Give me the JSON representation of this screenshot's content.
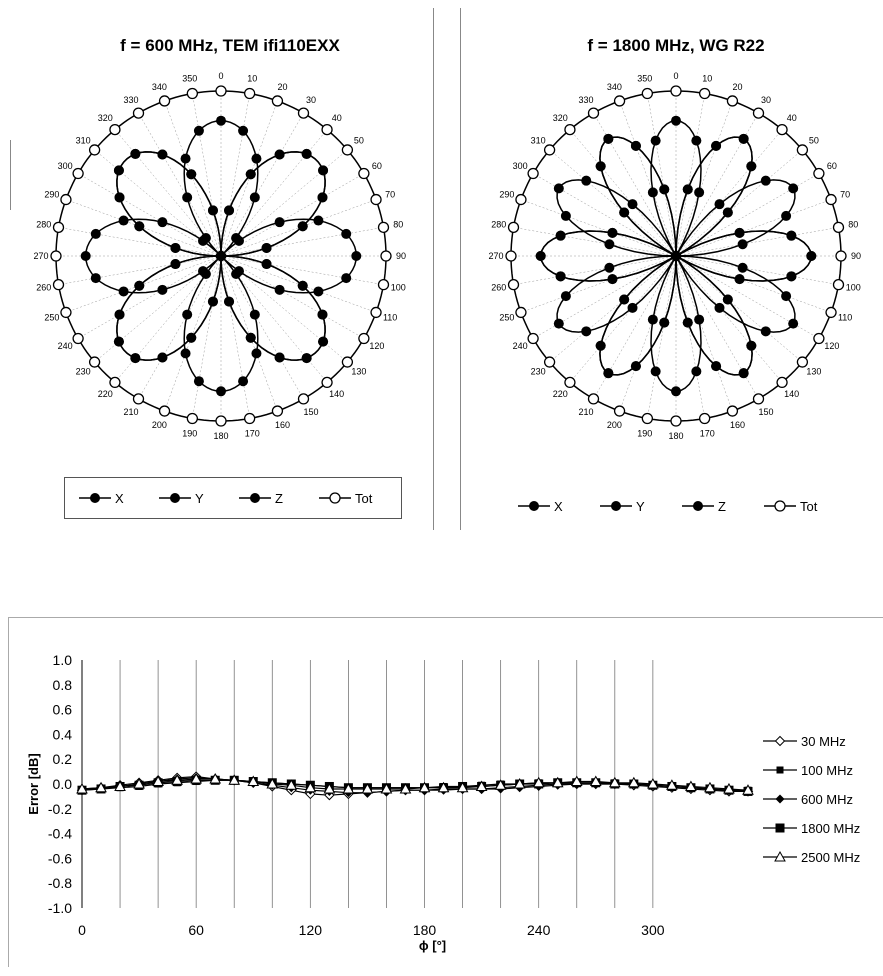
{
  "chart_data": [
    {
      "type": "polar",
      "title": "f = 600 MHz, TEM  ifi110EXX",
      "angle_labels": [
        "0",
        "10",
        "20",
        "30",
        "40",
        "50",
        "60",
        "70",
        "80",
        "90",
        "100",
        "110",
        "120",
        "130",
        "140",
        "150",
        "160",
        "170",
        "180",
        "190",
        "200",
        "210",
        "220",
        "230",
        "240",
        "250",
        "260",
        "270",
        "280",
        "290",
        "300",
        "310",
        "320",
        "330",
        "340",
        "350"
      ],
      "series": [
        {
          "name": "X",
          "marker": "filled-circle",
          "pattern": "|cos(2θ)| petals",
          "petals": 4,
          "orientation_deg": 45
        },
        {
          "name": "Y",
          "marker": "filled-circle",
          "pattern": "|sin(2θ)| petals",
          "petals": 4,
          "orientation_deg": 0
        },
        {
          "name": "Z",
          "marker": "filled-circle",
          "pattern": "|cos(2θ)| petals",
          "petals": 4,
          "orientation_deg": 45
        },
        {
          "name": "Tot",
          "marker": "open-circle",
          "pattern": "constant circle",
          "relative_radius": 1.0
        }
      ],
      "legend": [
        "X",
        "Y",
        "Z",
        "Tot"
      ],
      "legend_position": "bottom"
    },
    {
      "type": "polar",
      "title": "f = 1800 MHz, WG R22",
      "angle_labels": [
        "0",
        "10",
        "20",
        "30",
        "40",
        "50",
        "60",
        "70",
        "80",
        "90",
        "100",
        "110",
        "120",
        "130",
        "140",
        "150",
        "160",
        "170",
        "180",
        "190",
        "200",
        "210",
        "220",
        "230",
        "240",
        "250",
        "260",
        "270",
        "280",
        "290",
        "300",
        "310",
        "320",
        "330",
        "340",
        "350"
      ],
      "series": [
        {
          "name": "X",
          "marker": "filled-circle",
          "pattern": "|cos(3θ)| petals",
          "petals": 6,
          "orientation_deg": 30
        },
        {
          "name": "Y",
          "marker": "filled-circle",
          "pattern": "|sin(3θ)| petals",
          "petals": 6,
          "orientation_deg": 0
        },
        {
          "name": "Z",
          "marker": "filled-circle",
          "pattern": "|cos(3θ)| petals",
          "petals": 6,
          "orientation_deg": 30
        },
        {
          "name": "Tot",
          "marker": "open-circle",
          "pattern": "constant circle",
          "relative_radius": 1.0
        }
      ],
      "legend": [
        "X",
        "Y",
        "Z",
        "Tot"
      ],
      "legend_position": "bottom"
    },
    {
      "type": "line",
      "title": "",
      "xlabel": "ϕ [°]",
      "ylabel": "Error [dB]",
      "xlim": [
        0,
        350
      ],
      "ylim": [
        -1.0,
        1.0
      ],
      "xticks": [
        "0",
        "60",
        "120",
        "180",
        "240",
        "300"
      ],
      "yticks": [
        "1.0",
        "0.8",
        "0.6",
        "0.4",
        "0.2",
        "0.0",
        "-0.2",
        "-0.4",
        "-0.6",
        "-0.8",
        "-1.0"
      ],
      "grid": "vertical every 20°",
      "legend_position": "right",
      "x": [
        0,
        10,
        20,
        30,
        40,
        50,
        60,
        70,
        80,
        90,
        100,
        110,
        120,
        130,
        140,
        150,
        160,
        170,
        180,
        190,
        200,
        210,
        220,
        230,
        240,
        250,
        260,
        270,
        280,
        290,
        300,
        310,
        320,
        330,
        340,
        350
      ],
      "series": [
        {
          "name": "30 MHz",
          "marker": "open-diamond",
          "values": [
            -0.05,
            -0.03,
            -0.01,
            0.01,
            0.03,
            0.05,
            0.06,
            0.04,
            0.03,
            0.01,
            -0.02,
            -0.05,
            -0.08,
            -0.09,
            -0.08,
            -0.07,
            -0.06,
            -0.05,
            -0.05,
            -0.04,
            -0.04,
            -0.04,
            -0.03,
            -0.02,
            -0.01,
            0.0,
            0.0,
            0.0,
            0.0,
            -0.01,
            -0.02,
            -0.03,
            -0.04,
            -0.05,
            -0.06,
            -0.06
          ]
        },
        {
          "name": "100 MHz",
          "marker": "filled-square",
          "values": [
            -0.05,
            -0.04,
            -0.03,
            -0.02,
            0.0,
            0.01,
            0.02,
            0.03,
            0.03,
            0.02,
            0.01,
            0.0,
            -0.01,
            -0.02,
            -0.03,
            -0.03,
            -0.03,
            -0.03,
            -0.03,
            -0.02,
            -0.02,
            -0.01,
            0.0,
            0.0,
            0.01,
            0.01,
            0.01,
            0.01,
            0.01,
            0.0,
            -0.01,
            -0.02,
            -0.03,
            -0.04,
            -0.05,
            -0.05
          ]
        },
        {
          "name": "600 MHz",
          "marker": "filled-diamond",
          "values": [
            -0.04,
            -0.03,
            -0.02,
            0.0,
            0.02,
            0.04,
            0.05,
            0.04,
            0.03,
            0.01,
            -0.01,
            -0.03,
            -0.05,
            -0.06,
            -0.07,
            -0.07,
            -0.06,
            -0.05,
            -0.05,
            -0.05,
            -0.04,
            -0.04,
            -0.04,
            -0.03,
            -0.02,
            -0.01,
            0.0,
            0.0,
            0.0,
            0.0,
            -0.01,
            -0.02,
            -0.03,
            -0.04,
            -0.05,
            -0.05
          ]
        },
        {
          "name": "1800 MHz",
          "marker": "filled-square-large",
          "values": [
            -0.05,
            -0.04,
            -0.02,
            -0.01,
            0.01,
            0.02,
            0.03,
            0.03,
            0.03,
            0.02,
            0.01,
            0.0,
            -0.01,
            -0.02,
            -0.03,
            -0.03,
            -0.03,
            -0.03,
            -0.03,
            -0.03,
            -0.02,
            -0.02,
            -0.01,
            0.0,
            0.0,
            0.01,
            0.01,
            0.01,
            0.0,
            0.0,
            -0.01,
            -0.02,
            -0.03,
            -0.04,
            -0.05,
            -0.06
          ]
        },
        {
          "name": "2500 MHz",
          "marker": "open-triangle",
          "values": [
            -0.04,
            -0.03,
            -0.02,
            0.0,
            0.02,
            0.03,
            0.04,
            0.04,
            0.03,
            0.02,
            0.0,
            -0.01,
            -0.03,
            -0.04,
            -0.04,
            -0.04,
            -0.04,
            -0.04,
            -0.03,
            -0.03,
            -0.03,
            -0.02,
            -0.01,
            0.0,
            0.01,
            0.01,
            0.02,
            0.02,
            0.01,
            0.01,
            0.0,
            -0.01,
            -0.02,
            -0.03,
            -0.04,
            -0.05
          ]
        }
      ],
      "legend": [
        "30 MHz",
        "100 MHz",
        "600 MHz",
        "1800 MHz",
        "2500 MHz"
      ]
    }
  ]
}
